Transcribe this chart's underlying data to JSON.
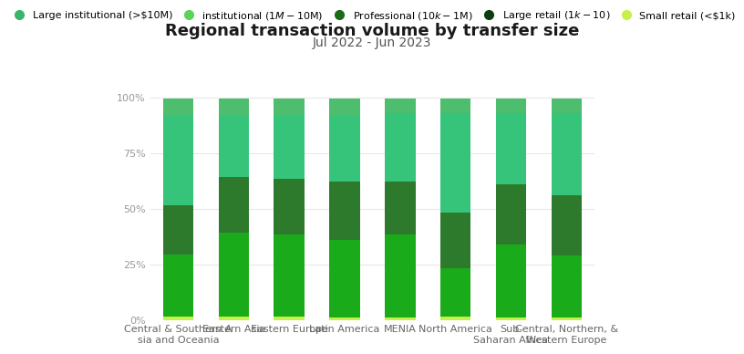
{
  "title": "Regional transaction volume by transfer size",
  "subtitle": "Jul 2022 - Jun 2023",
  "categories": [
    "Central & Southern A\nsia and Oceania",
    "Eastern Asia",
    "Eastern Europe",
    "Latin America",
    "MENIA",
    "North America",
    "Sub-\nSaharan Africa",
    "Central, Northern, &\nWestern Europe"
  ],
  "series_order": [
    "Small retail (<$1k)",
    "Large retail ($1k-$10)",
    "Professional ($10k-$1M)",
    "institutional ($1M-$10M)",
    "Large institutional (>$10M)"
  ],
  "series": {
    "Small retail (<$1k)": {
      "color": "#c8f04a",
      "values": [
        1.5,
        1.5,
        1.5,
        1.0,
        1.0,
        1.5,
        1.0,
        1.0
      ]
    },
    "Large retail ($1k-$10)": {
      "color": "#1aab1a",
      "values": [
        28.0,
        38.0,
        37.0,
        35.0,
        37.5,
        22.0,
        33.0,
        28.0
      ]
    },
    "Professional ($10k-$1M)": {
      "color": "#2d7a2d",
      "values": [
        22.0,
        25.0,
        25.0,
        26.5,
        24.0,
        25.0,
        27.0,
        27.0
      ]
    },
    "institutional ($1M-$10M)": {
      "color": "#36c47a",
      "values": [
        40.5,
        27.5,
        29.0,
        30.0,
        30.5,
        44.5,
        32.0,
        37.0
      ]
    },
    "Large institutional (>$10M)": {
      "color": "#4dbd6e",
      "values": [
        7.5,
        7.5,
        7.0,
        7.0,
        6.5,
        6.5,
        6.5,
        6.5
      ]
    }
  },
  "legend_order": [
    "Large institutional (>$10M)",
    "institutional ($1M-$10M)",
    "Professional ($10k-$1M)",
    "Large retail ($1k-$10)",
    "Small retail (<$1k)"
  ],
  "legend_colors": {
    "Large institutional (>$10M)": "#3ab56e",
    "institutional ($1M-$10M)": "#5cd45a",
    "Professional ($10k-$1M)": "#1a6b1a",
    "Large retail ($1k-$10)": "#0d3d0d",
    "Small retail (<$1k)": "#c8f04a"
  },
  "ylim": [
    0,
    112
  ],
  "yticks": [
    0,
    25,
    50,
    75,
    100
  ],
  "ytick_labels": [
    "0%",
    "25%",
    "50%",
    "75%",
    "100%"
  ],
  "background_color": "#ffffff",
  "bar_width": 0.55,
  "title_fontsize": 13,
  "subtitle_fontsize": 10,
  "legend_fontsize": 8,
  "tick_fontsize": 8,
  "grid_color": "#e8e8e8"
}
